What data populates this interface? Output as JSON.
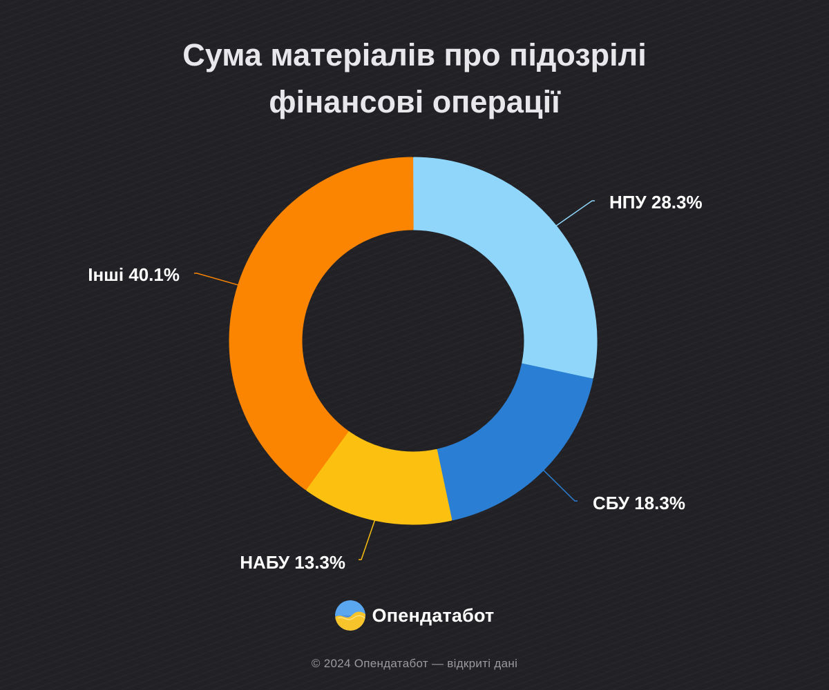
{
  "page": {
    "title_lines": [
      "Сума матеріалів про підозрілі",
      "фінансові операції"
    ],
    "brand_name": "Опендатабот",
    "footer": "© 2024 Опендатабот — відкриті дані"
  },
  "colors": {
    "background": "#222226",
    "label_text": "#ffffff",
    "footer_text": "#9a9aa0"
  },
  "chart_data": {
    "type": "pie",
    "variant": "donut",
    "unit": "%",
    "start": "top",
    "direction": "clockwise",
    "slices": [
      {
        "label": "НПУ",
        "value": 28.3,
        "display": "НПУ 28.3%",
        "color": "#8fd6fa",
        "label_side": "right"
      },
      {
        "label": "СБУ",
        "value": 18.3,
        "display": "СБУ 18.3%",
        "color": "#2a7fd4",
        "label_side": "right"
      },
      {
        "label": "НАБУ",
        "value": 13.3,
        "display": "НАБУ 13.3%",
        "color": "#fcc010",
        "label_side": "left"
      },
      {
        "label": "Інші",
        "value": 40.1,
        "display": "Інші 40.1%",
        "color": "#fb8500",
        "label_side": "left"
      }
    ],
    "legend": "none"
  }
}
